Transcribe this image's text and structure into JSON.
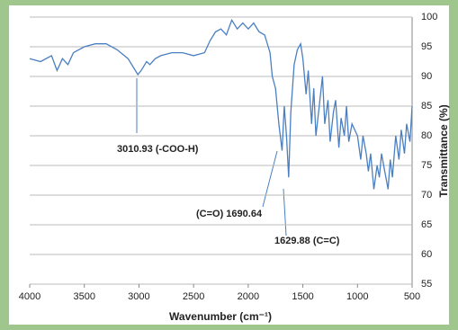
{
  "chart_data": {
    "type": "line",
    "x_label": "Wavenumber (cm⁻¹)",
    "y_label": "Transmittance (%)",
    "x": [
      4000,
      3900,
      3800,
      3750,
      3700,
      3650,
      3600,
      3500,
      3400,
      3300,
      3200,
      3100,
      3050,
      3010,
      2980,
      2930,
      2900,
      2850,
      2800,
      2700,
      2600,
      2500,
      2400,
      2350,
      2300,
      2250,
      2200,
      2150,
      2100,
      2050,
      2000,
      1950,
      1900,
      1850,
      1800,
      1780,
      1750,
      1720,
      1700,
      1690,
      1670,
      1650,
      1630,
      1610,
      1580,
      1550,
      1520,
      1500,
      1470,
      1450,
      1420,
      1400,
      1380,
      1350,
      1320,
      1300,
      1270,
      1250,
      1220,
      1200,
      1170,
      1150,
      1120,
      1100,
      1080,
      1050,
      1000,
      970,
      950,
      920,
      900,
      880,
      850,
      820,
      800,
      780,
      750,
      720,
      700,
      680,
      650,
      620,
      600,
      570,
      550,
      520,
      500
    ],
    "values": [
      93,
      92.5,
      93.5,
      91,
      93,
      92,
      94,
      95,
      95.5,
      95.5,
      94.5,
      93,
      91.5,
      90.3,
      91,
      92.5,
      92,
      93,
      93.5,
      94,
      94,
      93.5,
      94,
      96,
      97.5,
      98,
      97,
      99.5,
      98,
      99,
      98,
      99,
      97.5,
      97,
      94,
      90,
      88,
      82,
      79,
      77.5,
      85,
      80,
      73,
      84,
      92,
      94.5,
      95.5,
      93,
      87,
      91,
      82,
      88,
      80,
      85,
      90,
      82,
      86,
      79,
      84,
      86,
      78,
      83,
      80,
      85,
      79,
      82,
      80,
      76,
      80,
      77,
      74,
      77,
      71,
      75,
      73,
      77,
      74,
      71,
      76,
      73,
      80,
      76,
      81,
      77,
      82,
      79,
      85
    ],
    "color": "#4a7fc1",
    "xlim": [
      4000,
      500
    ],
    "ylim": [
      55,
      100
    ],
    "xticks": [
      4000,
      3500,
      3000,
      2500,
      2000,
      1500,
      1000,
      500
    ],
    "yticks": [
      55,
      60,
      65,
      70,
      75,
      80,
      85,
      90,
      95,
      100
    ],
    "grid": true,
    "annotations": [
      "3010.93 (-COO-H)",
      "(C=O) 1690.64",
      "1629.88 (C=C)"
    ]
  }
}
